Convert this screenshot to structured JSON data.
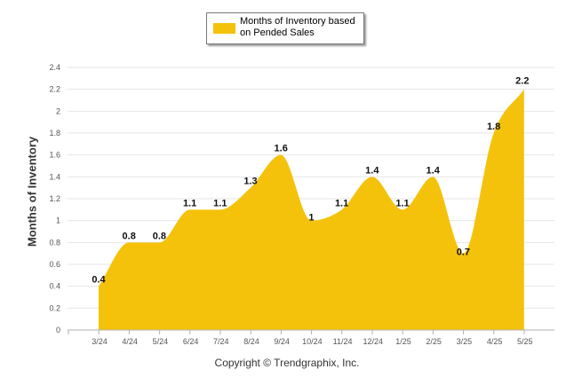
{
  "legend": {
    "label": "Months of Inventory based on Pended Sales",
    "color": "#f5c20b"
  },
  "footer": {
    "copyright": "Copyright © Trendgraphix, Inc."
  },
  "chart_data": {
    "type": "area",
    "title": "",
    "xlabel": "",
    "ylabel": "Months of Inventory",
    "categories": [
      "3/24",
      "4/24",
      "5/24",
      "6/24",
      "7/24",
      "8/24",
      "9/24",
      "10/24",
      "11/24",
      "12/24",
      "1/25",
      "2/25",
      "3/25",
      "4/25",
      "5/25"
    ],
    "series": [
      {
        "name": "Months of Inventory based on Pended Sales",
        "values": [
          0.4,
          0.8,
          0.8,
          1.1,
          1.1,
          1.3,
          1.6,
          1,
          1.1,
          1.4,
          1.1,
          1.4,
          0.7,
          1.8,
          2.2
        ],
        "color": "#f5c20b"
      }
    ],
    "data_labels": [
      "0.4",
      "0.8",
      "0.8",
      "1.1",
      "1.1",
      "1.3",
      "1.6",
      "1",
      "1.1",
      "1.4",
      "1.1",
      "1.4",
      "0.7",
      "1.8",
      "2.2"
    ],
    "yticks": [
      "0",
      "0.2",
      "0.4",
      "0.6",
      "0.8",
      "1",
      "1.2",
      "1.4",
      "1.6",
      "1.8",
      "2",
      "2.2",
      "2.4"
    ],
    "ylim": [
      0,
      2.4
    ],
    "grid": true,
    "legend_position": "top-center"
  }
}
